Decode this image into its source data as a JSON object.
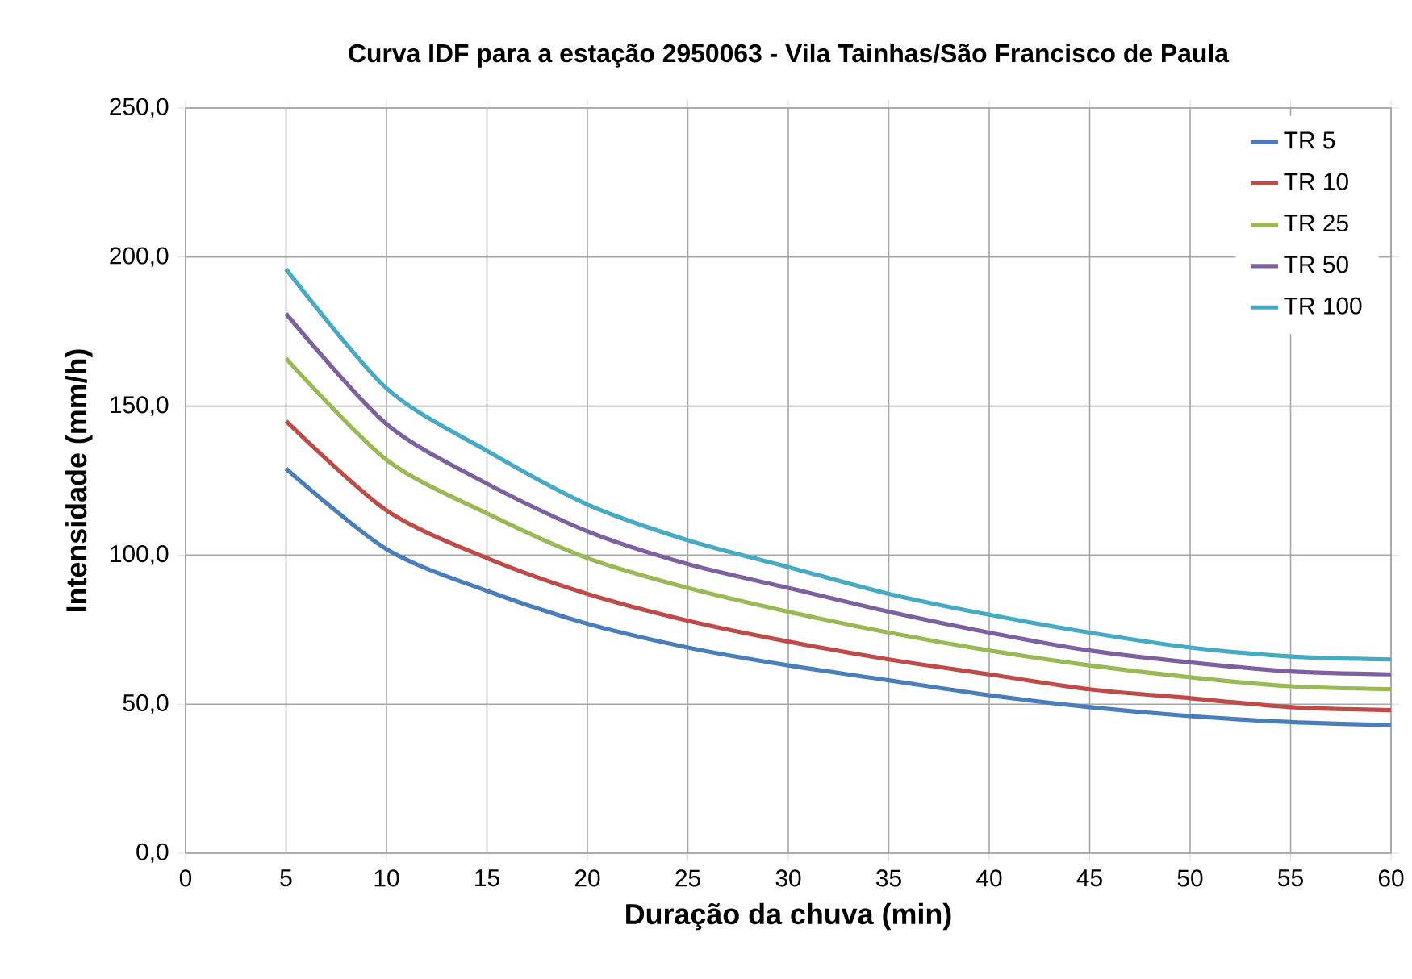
{
  "chart_data": {
    "type": "line",
    "title": "Curva IDF para a estação 2950063 - Vila Tainhas/São Francisco de Paula",
    "xlabel": "Duração da chuva (min)",
    "ylabel": "Intensidade (mm/h)",
    "x": [
      5,
      10,
      15,
      20,
      25,
      30,
      35,
      40,
      45,
      50,
      55,
      60
    ],
    "series": [
      {
        "name": "TR 5",
        "color": "#4a7ebb",
        "values": [
          129,
          102,
          88,
          77,
          69,
          63,
          58,
          53,
          49,
          46,
          44,
          43
        ]
      },
      {
        "name": "TR 10",
        "color": "#be4b48",
        "values": [
          145,
          115,
          99,
          87,
          78,
          71,
          65,
          60,
          55,
          52,
          49,
          48
        ]
      },
      {
        "name": "TR 25",
        "color": "#98b954",
        "values": [
          166,
          132,
          114,
          99,
          89,
          81,
          74,
          68,
          63,
          59,
          56,
          55
        ]
      },
      {
        "name": "TR 50",
        "color": "#7d60a0",
        "values": [
          181,
          144,
          124,
          108,
          97,
          89,
          81,
          74,
          68,
          64,
          61,
          60
        ]
      },
      {
        "name": "TR 100",
        "color": "#46aac5",
        "values": [
          196,
          156,
          135,
          117,
          105,
          96,
          87,
          80,
          74,
          69,
          66,
          65
        ]
      }
    ],
    "xlim": [
      0,
      60
    ],
    "xticks": [
      0,
      5,
      10,
      15,
      20,
      25,
      30,
      35,
      40,
      45,
      50,
      55,
      60
    ],
    "ylim": [
      0,
      250
    ],
    "yticks": [
      {
        "value": 0,
        "label": "0,0"
      },
      {
        "value": 50,
        "label": "50,0"
      },
      {
        "value": 100,
        "label": "100,0"
      },
      {
        "value": 150,
        "label": "150,0"
      },
      {
        "value": 200,
        "label": "200,0"
      },
      {
        "value": 250,
        "label": "250,0"
      }
    ],
    "grid": true,
    "legend": "top right",
    "marker": "none",
    "line_style": "solid"
  }
}
